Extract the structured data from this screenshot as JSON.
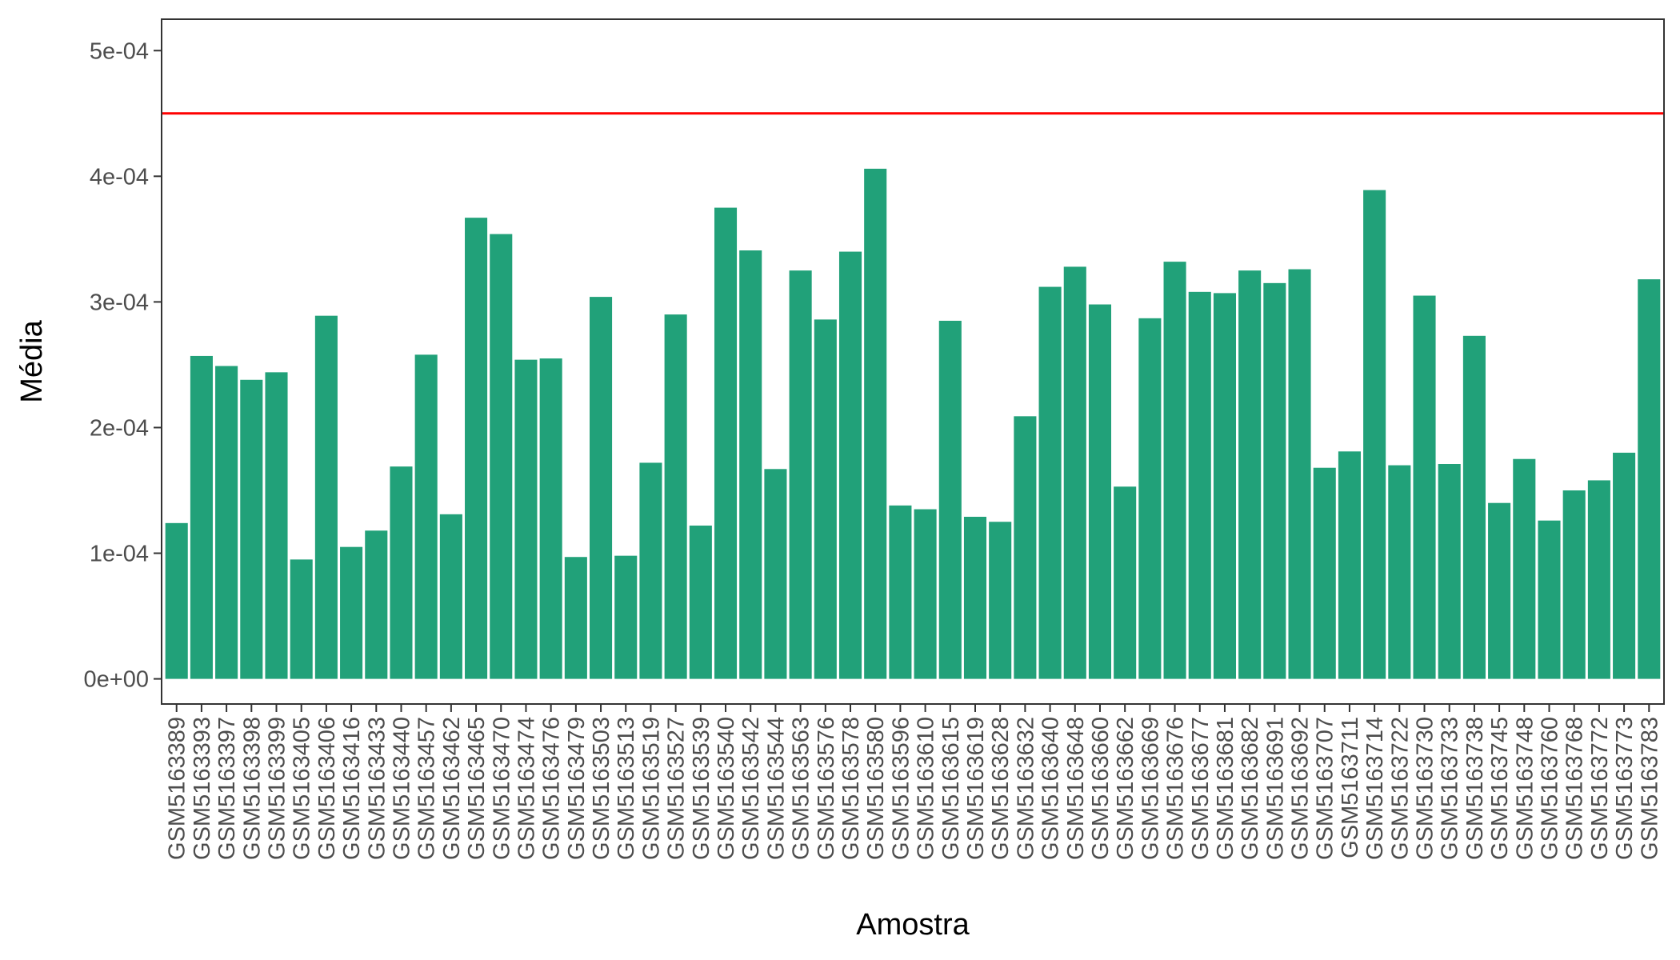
{
  "chart_data": {
    "type": "bar",
    "xlabel": "Amostra",
    "ylabel": "Média",
    "ylim": [
      -2e-05,
      0.000525
    ],
    "yticks": [
      0,
      0.0001,
      0.0002,
      0.0003,
      0.0004,
      0.0005
    ],
    "ytick_labels": [
      "0e+00",
      "1e-04",
      "2e-04",
      "3e-04",
      "4e-04",
      "5e-04"
    ],
    "grid": false,
    "legend": "none",
    "categories": [
      "GSM5163389",
      "GSM5163393",
      "GSM5163397",
      "GSM5163398",
      "GSM5163399",
      "GSM5163405",
      "GSM5163406",
      "GSM5163416",
      "GSM5163433",
      "GSM5163440",
      "GSM5163457",
      "GSM5163462",
      "GSM5163465",
      "GSM5163470",
      "GSM5163474",
      "GSM5163476",
      "GSM5163479",
      "GSM5163503",
      "GSM5163513",
      "GSM5163519",
      "GSM5163527",
      "GSM5163539",
      "GSM5163540",
      "GSM5163542",
      "GSM5163544",
      "GSM5163563",
      "GSM5163576",
      "GSM5163578",
      "GSM5163580",
      "GSM5163596",
      "GSM5163610",
      "GSM5163615",
      "GSM5163619",
      "GSM5163628",
      "GSM5163632",
      "GSM5163640",
      "GSM5163648",
      "GSM5163660",
      "GSM5163662",
      "GSM5163669",
      "GSM5163676",
      "GSM5163677",
      "GSM5163681",
      "GSM5163682",
      "GSM5163691",
      "GSM5163692",
      "GSM5163707",
      "GSM5163711",
      "GSM5163714",
      "GSM5163722",
      "GSM5163730",
      "GSM5163733",
      "GSM5163738",
      "GSM5163745",
      "GSM5163748",
      "GSM5163760",
      "GSM5163768",
      "GSM5163772",
      "GSM5163773",
      "GSM5163783"
    ],
    "values": [
      0.000124,
      0.000257,
      0.000249,
      0.000238,
      0.000244,
      9.5e-05,
      0.000289,
      0.000105,
      0.000118,
      0.000169,
      0.000258,
      0.000131,
      0.000367,
      0.000354,
      0.000254,
      0.000255,
      9.7e-05,
      0.000304,
      9.8e-05,
      0.000172,
      0.00029,
      0.000122,
      0.000375,
      0.000341,
      0.000167,
      0.000325,
      0.000286,
      0.00034,
      0.000406,
      0.000138,
      0.000135,
      0.000285,
      0.000129,
      0.000125,
      0.000209,
      0.000312,
      0.000328,
      0.000298,
      0.000153,
      0.000287,
      0.000332,
      0.000308,
      0.000307,
      0.000325,
      0.000315,
      0.000326,
      0.000168,
      0.000181,
      0.000389,
      0.00017,
      0.000305,
      0.000171,
      0.000273,
      0.00014,
      0.000175,
      0.000126,
      0.00015,
      0.000158,
      0.00018,
      0.000318
    ],
    "reference_line": {
      "y": 0.00045,
      "color": "#ff0000"
    },
    "bar_color": "#21a179"
  }
}
